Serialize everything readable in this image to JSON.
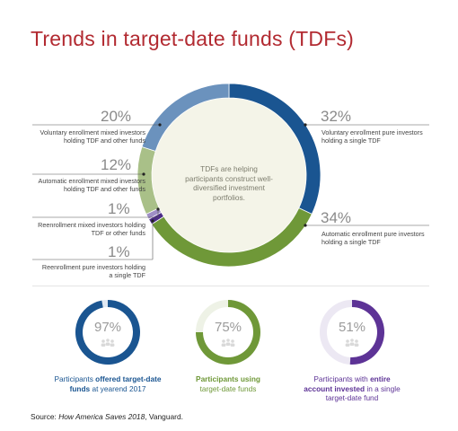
{
  "title": "Trends in target-date funds (TDFs)",
  "chart_data": [
    {
      "type": "pie",
      "center_text": "TDFs are helping participants construct well-diversified investment portfolios.",
      "slices": [
        {
          "value": 32,
          "pct_label": "32%",
          "label": "Voluntary enrollment pure investors\nholding a single TDF",
          "color": "#1a5591"
        },
        {
          "value": 34,
          "pct_label": "34%",
          "label": "Automatic enrollment pure investors\nholding a single TDF",
          "color": "#6f9838"
        },
        {
          "value": 1,
          "pct_label": "1%",
          "label": "Reenrollment pure investors holding\na single TDF",
          "color": "#4b2b87"
        },
        {
          "value": 1,
          "pct_label": "1%",
          "label": "Reenrollment mixed investors holding\nTDF or other funds",
          "color": "#9f8fc6"
        },
        {
          "value": 12,
          "pct_label": "12%",
          "label": "Automatic enrollment mixed investors\nholding TDF and other funds",
          "color": "#a9c088"
        },
        {
          "value": 20,
          "pct_label": "20%",
          "label": "Voluntary enrollment mixed investors\nholding TDF and other funds",
          "color": "#6b92bd"
        }
      ]
    },
    {
      "type": "pie",
      "value": 97,
      "value_label": "97%",
      "caption": "Participants offered target-date funds at yearend 2017",
      "color": "#1a5591",
      "track_color": "#dfe8f2"
    },
    {
      "type": "pie",
      "value": 75,
      "value_label": "75%",
      "caption": "Participants using target-date funds",
      "color": "#6f9838",
      "track_color": "#eef2e6"
    },
    {
      "type": "pie",
      "value": 51,
      "value_label": "51%",
      "caption": "Participants with entire account invested in a single target-date fund",
      "color": "#5d3396",
      "track_color": "#ece8f3"
    }
  ],
  "kpi_captions": [
    {
      "pre": "Participants ",
      "bold": "offered target-date",
      "mid": "funds",
      "post": " at yearend 2017"
    },
    {
      "pre": "",
      "bold": "Participants using",
      "mid": "",
      "post": "target-date funds"
    },
    {
      "pre": "Participants with ",
      "bold": "entire account invested",
      "mid": "",
      "post": " in a single target-date fund"
    }
  ],
  "source": {
    "prefix": "Source: ",
    "title": "How America Saves 2018",
    "suffix": ", Vanguard."
  },
  "colors": {
    "title": "#b22a31",
    "inner_fill": "#f4f4e8",
    "leader": "#555555"
  }
}
